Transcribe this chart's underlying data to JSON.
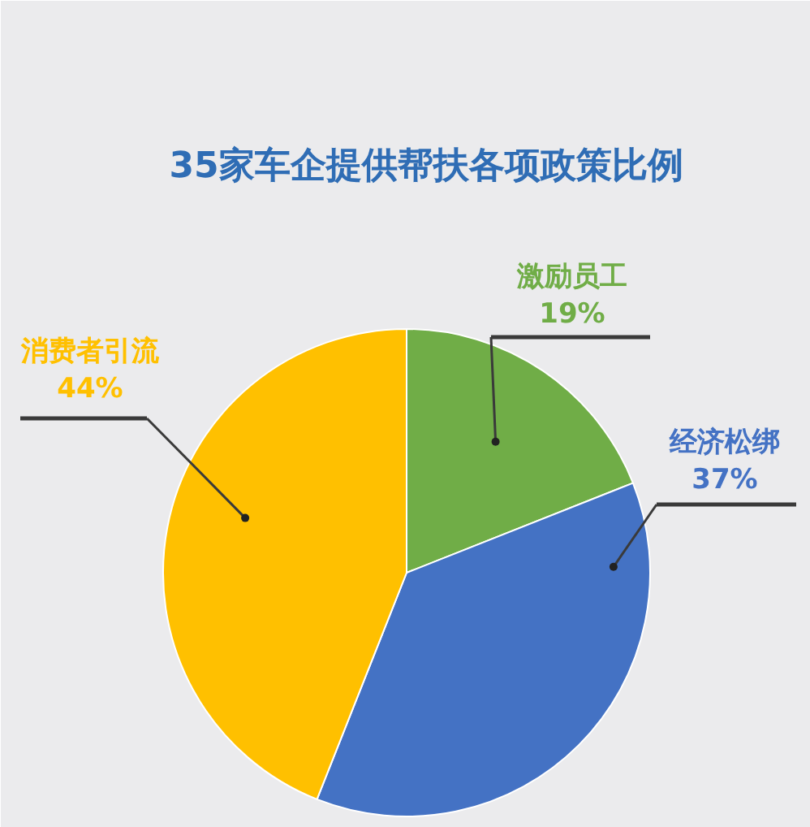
{
  "chart_data": {
    "type": "pie",
    "title": "35家车企提供帮扶各项政策比例",
    "categories": [
      "激励员工",
      "经济松绑",
      "消费者引流"
    ],
    "values": [
      19,
      37,
      44
    ],
    "value_labels": [
      "19%",
      "37%",
      "44%"
    ],
    "colors": [
      "#70ad47",
      "#4472c4",
      "#ffc000"
    ]
  }
}
